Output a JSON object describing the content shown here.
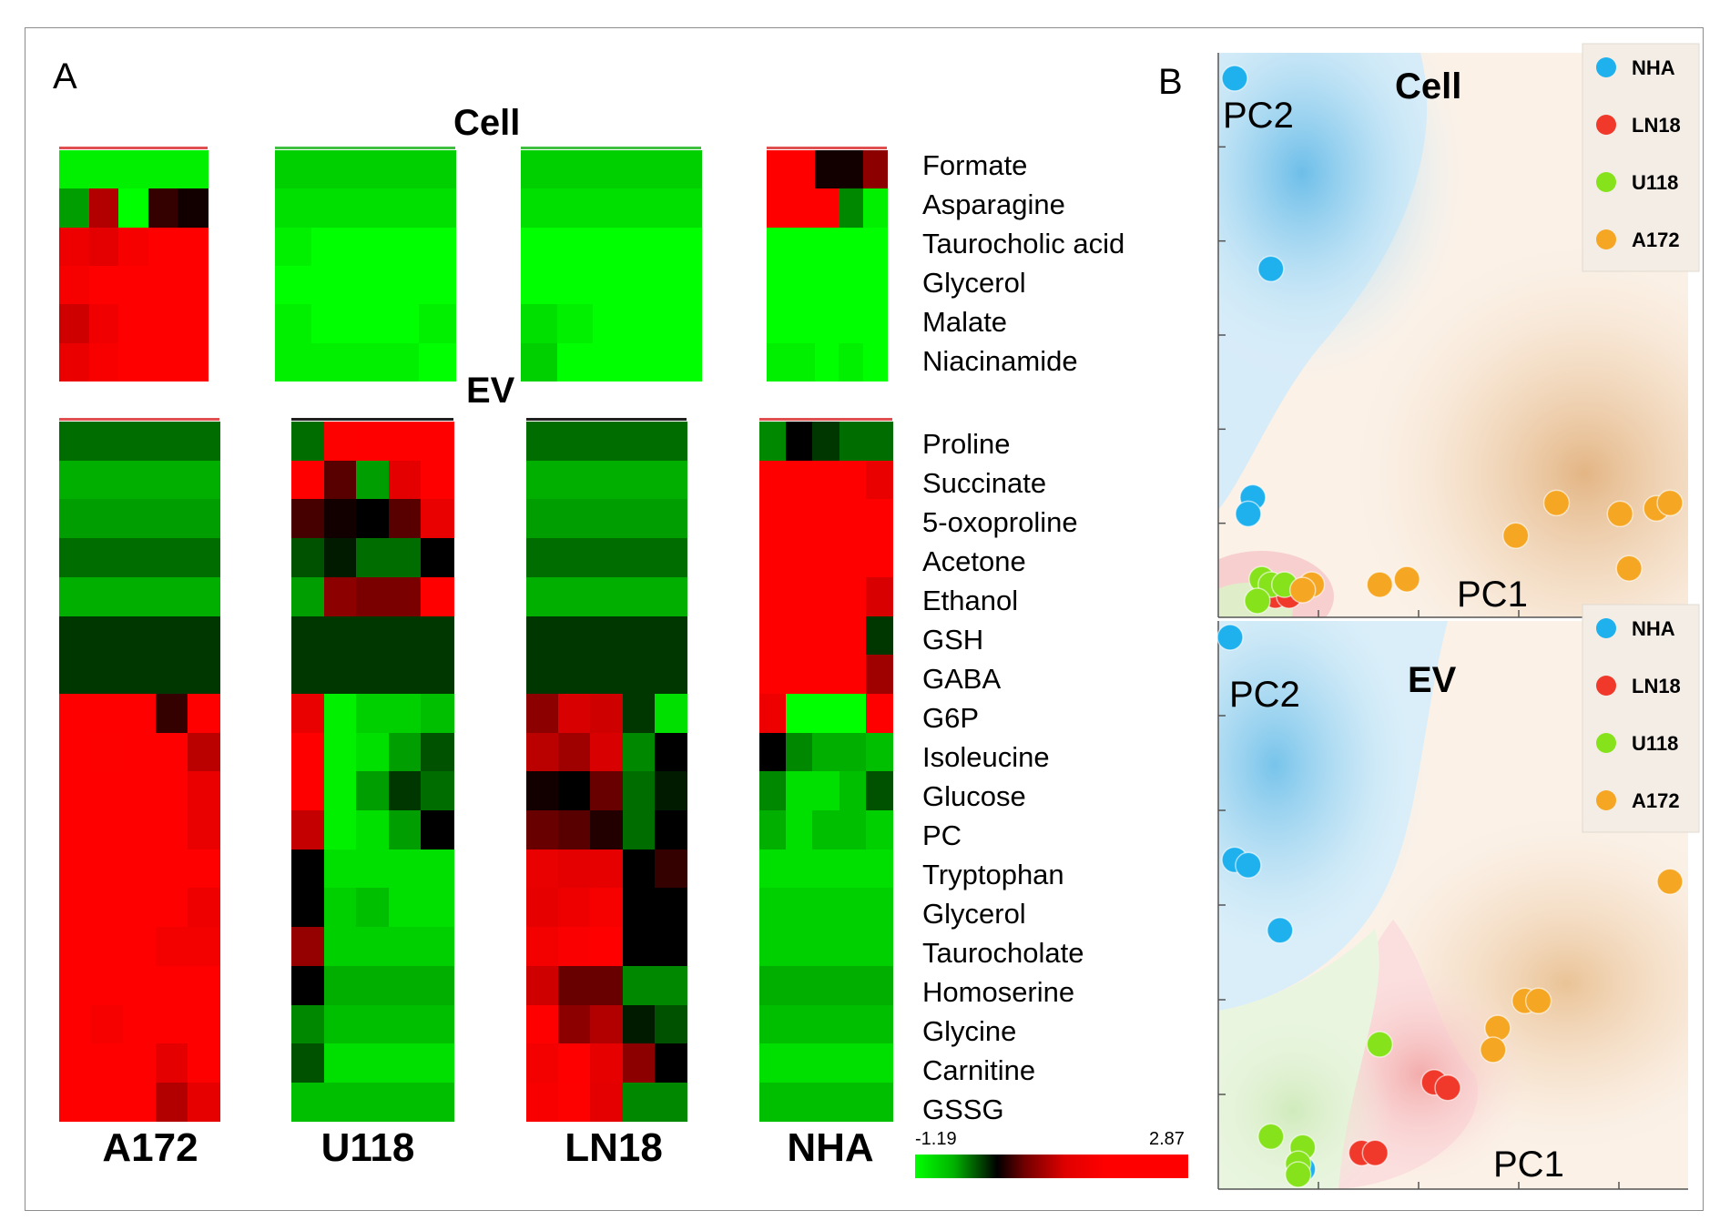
{
  "panel_labels": {
    "a": "A",
    "b": "B"
  },
  "heatmap": {
    "cell_title": "Cell",
    "ev_title": "EV",
    "groups": [
      "A172",
      "U118",
      "LN18",
      "NHA"
    ],
    "scale": {
      "min": "-1.19",
      "max": "2.87"
    },
    "cell_metabolites": [
      "Formate",
      "Asparagine",
      "Taurocholic acid",
      "Glycerol",
      "Malate",
      "Niacinamide"
    ],
    "ev_metabolites": [
      "Proline",
      "Succinate",
      "5-oxoproline",
      "Acetone",
      "Ethanol",
      "GSH",
      "GABA",
      "G6P",
      "Isoleucine",
      "Glucose",
      "PC",
      "Tryptophan",
      "Glycerol",
      "Taurocholate",
      "Homoserine",
      "Glycine",
      "Carnitine",
      "GSSG"
    ]
  },
  "pca": {
    "axis_x": "PC1",
    "axis_y": "PC2",
    "legend": [
      "NHA",
      "LN18",
      "U118",
      "A172"
    ],
    "colors": {
      "NHA": "#1fb0ee",
      "LN18": "#f0392b",
      "U118": "#86e21b",
      "A172": "#f5a623"
    },
    "cell_title": "Cell",
    "ev_title": "EV"
  },
  "chart_data": [
    {
      "type": "heatmap",
      "title": "Cell",
      "rows": [
        "Formate",
        "Asparagine",
        "Taurocholic acid",
        "Glycerol",
        "Malate",
        "Niacinamide"
      ],
      "groups": [
        "A172",
        "U118",
        "LN18",
        "NHA"
      ],
      "replicates": 5,
      "color_range": [
        -1.19,
        2.87
      ],
      "values": {
        "A172": [
          [
            -1.1,
            -1.1,
            -1.1,
            -1.1,
            -1.1
          ],
          [
            -0.6,
            1.2,
            -1.2,
            0.3,
            0.1
          ],
          [
            2.2,
            1.8,
            2.5,
            2.9,
            2.9
          ],
          [
            2.5,
            2.9,
            2.9,
            2.9,
            2.9
          ],
          [
            1.5,
            2.3,
            2.9,
            2.9,
            2.9
          ],
          [
            2.1,
            2.6,
            2.9,
            2.9,
            2.9
          ]
        ],
        "U118": [
          [
            -0.9,
            -0.9,
            -0.9,
            -0.9,
            -0.9
          ],
          [
            -1.0,
            -1.0,
            -1.0,
            -1.0,
            -1.0
          ],
          [
            -1.1,
            -1.2,
            -1.2,
            -1.2,
            -1.2
          ],
          [
            -1.2,
            -1.2,
            -1.2,
            -1.2,
            -1.2
          ],
          [
            -1.1,
            -1.2,
            -1.2,
            -1.2,
            -1.1
          ],
          [
            -1.1,
            -1.1,
            -1.1,
            -1.1,
            -1.2
          ]
        ],
        "LN18": [
          [
            -0.9,
            -0.9,
            -0.9,
            -0.9,
            -0.9
          ],
          [
            -1.0,
            -1.0,
            -1.0,
            -1.0,
            -1.0
          ],
          [
            -1.2,
            -1.2,
            -1.2,
            -1.2,
            -1.2
          ],
          [
            -1.2,
            -1.2,
            -1.2,
            -1.2,
            -1.2
          ],
          [
            -1.0,
            -1.1,
            -1.2,
            -1.2,
            -1.2
          ],
          [
            -0.9,
            -1.2,
            -1.2,
            -1.2,
            -1.2
          ]
        ],
        "NHA": [
          [
            2.9,
            2.9,
            0.1,
            0.1,
            0.8
          ],
          [
            2.9,
            2.9,
            2.9,
            -0.5,
            -1.1
          ],
          [
            -1.2,
            -1.2,
            -1.2,
            -1.2,
            -1.2
          ],
          [
            -1.2,
            -1.2,
            -1.2,
            -1.2,
            -1.2
          ],
          [
            -1.2,
            -1.2,
            -1.2,
            -1.2,
            -1.2
          ],
          [
            -1.1,
            -1.1,
            -1.2,
            -1.1,
            -1.2
          ]
        ]
      }
    },
    {
      "type": "heatmap",
      "title": "EV",
      "rows": [
        "Proline",
        "Succinate",
        "5-oxoproline",
        "Acetone",
        "Ethanol",
        "GSH",
        "GABA",
        "G6P",
        "Isoleucine",
        "Glucose",
        "PC",
        "Tryptophan",
        "Glycerol",
        "Taurocholate",
        "Homoserine",
        "Glycine",
        "Carnitine",
        "GSSG"
      ],
      "groups": [
        "A172",
        "U118",
        "LN18",
        "NHA"
      ],
      "replicates": 5,
      "color_range": [
        -1.19,
        2.87
      ],
      "values": {
        "A172": [
          [
            -0.4,
            -0.4,
            -0.4,
            -0.4,
            -0.4
          ],
          [
            -0.7,
            -0.7,
            -0.7,
            -0.7,
            -0.7
          ],
          [
            -0.6,
            -0.6,
            -0.6,
            -0.6,
            -0.6
          ],
          [
            -0.4,
            -0.4,
            -0.4,
            -0.4,
            -0.4
          ],
          [
            -0.7,
            -0.7,
            -0.7,
            -0.7,
            -0.7
          ],
          [
            -0.2,
            -0.2,
            -0.2,
            -0.2,
            -0.2
          ],
          [
            -0.2,
            -0.2,
            -0.2,
            -0.2,
            -0.2
          ],
          [
            2.9,
            2.9,
            2.9,
            0.3,
            2.9
          ],
          [
            2.9,
            2.8,
            2.9,
            2.9,
            1.3
          ],
          [
            2.9,
            2.9,
            2.9,
            2.9,
            2.1
          ],
          [
            2.9,
            2.9,
            2.9,
            2.9,
            2.0
          ],
          [
            2.9,
            2.9,
            2.9,
            2.9,
            2.9
          ],
          [
            2.9,
            2.9,
            2.9,
            2.9,
            2.2
          ],
          [
            2.9,
            2.9,
            2.9,
            2.4,
            2.4
          ],
          [
            2.9,
            2.9,
            2.9,
            2.9,
            2.9
          ],
          [
            2.9,
            2.5,
            2.9,
            2.9,
            2.9
          ],
          [
            2.9,
            2.9,
            2.9,
            1.8,
            2.9
          ],
          [
            2.9,
            2.9,
            2.9,
            1.2,
            1.9
          ]
        ],
        "U118": [
          [
            -0.4,
            2.8,
            2.9,
            2.9,
            2.9
          ],
          [
            2.9,
            0.5,
            -0.6,
            1.8,
            2.9
          ],
          [
            0.4,
            0.1,
            0.0,
            0.5,
            2.0
          ],
          [
            -0.3,
            -0.1,
            -0.4,
            -0.4,
            0.0
          ],
          [
            -0.6,
            0.8,
            0.7,
            0.7,
            2.9
          ],
          [
            -0.2,
            -0.2,
            -0.2,
            -0.2,
            -0.2
          ],
          [
            -0.2,
            -0.2,
            -0.2,
            -0.2,
            -0.2
          ],
          [
            2.0,
            -1.1,
            -0.9,
            -0.9,
            -0.8
          ],
          [
            2.9,
            -1.1,
            -1.0,
            -0.6,
            -0.3
          ],
          [
            2.9,
            -1.1,
            -0.6,
            -0.2,
            -0.4
          ],
          [
            1.4,
            -1.1,
            -1.0,
            -0.6,
            0.0
          ],
          [
            0.0,
            -1.0,
            -1.0,
            -1.0,
            -1.0
          ],
          [
            0.0,
            -0.9,
            -0.8,
            -1.0,
            -1.0
          ],
          [
            0.9,
            -0.9,
            -0.9,
            -0.9,
            -0.9
          ],
          [
            0.0,
            -0.7,
            -0.7,
            -0.7,
            -0.7
          ],
          [
            -0.5,
            -0.8,
            -0.8,
            -0.8,
            -0.8
          ],
          [
            -0.3,
            -1.0,
            -1.0,
            -1.0,
            -1.0
          ],
          [
            -0.8,
            -0.8,
            -0.8,
            -0.8,
            -0.8
          ]
        ],
        "LN18": [
          [
            -0.4,
            -0.4,
            -0.4,
            -0.4,
            -0.4
          ],
          [
            -0.7,
            -0.7,
            -0.7,
            -0.7,
            -0.7
          ],
          [
            -0.6,
            -0.6,
            -0.6,
            -0.6,
            -0.6
          ],
          [
            -0.4,
            -0.4,
            -0.4,
            -0.4,
            -0.4
          ],
          [
            -0.7,
            -0.7,
            -0.7,
            -0.7,
            -0.7
          ],
          [
            -0.2,
            -0.2,
            -0.2,
            -0.2,
            -0.2
          ],
          [
            -0.2,
            -0.2,
            -0.2,
            -0.2,
            -0.2
          ],
          [
            0.8,
            1.6,
            1.5,
            -0.2,
            -1.0
          ],
          [
            1.3,
            1.0,
            1.6,
            -0.5,
            0.0
          ],
          [
            0.1,
            0.0,
            0.6,
            -0.4,
            -0.1
          ],
          [
            0.6,
            0.5,
            0.2,
            -0.4,
            0.0
          ],
          [
            2.0,
            1.8,
            1.9,
            0.0,
            0.3
          ],
          [
            1.9,
            2.2,
            2.5,
            0.0,
            0.0
          ],
          [
            2.4,
            2.7,
            2.9,
            0.0,
            0.0
          ],
          [
            1.5,
            0.6,
            0.6,
            -0.5,
            -0.5
          ],
          [
            2.9,
            0.8,
            1.2,
            -0.1,
            -0.3
          ],
          [
            2.4,
            2.9,
            1.9,
            0.8,
            0.0
          ],
          [
            2.6,
            2.8,
            1.8,
            -0.5,
            -0.5
          ]
        ],
        "NHA": [
          [
            -0.5,
            0.0,
            -0.2,
            -0.4,
            -0.4
          ],
          [
            2.9,
            2.9,
            2.9,
            2.9,
            2.0
          ],
          [
            2.9,
            2.9,
            2.9,
            2.9,
            2.9
          ],
          [
            2.9,
            2.9,
            2.9,
            2.9,
            2.9
          ],
          [
            2.9,
            2.9,
            2.9,
            2.9,
            1.6
          ],
          [
            2.9,
            2.9,
            2.9,
            2.9,
            -0.2
          ],
          [
            2.9,
            2.9,
            2.9,
            2.9,
            1.0
          ],
          [
            2.2,
            -1.2,
            -1.2,
            -1.2,
            2.9
          ],
          [
            0.0,
            -0.5,
            -0.7,
            -0.7,
            -0.8
          ],
          [
            -0.5,
            -1.0,
            -1.0,
            -0.8,
            -0.3
          ],
          [
            -0.7,
            -1.0,
            -0.8,
            -0.8,
            -0.9
          ],
          [
            -1.0,
            -1.0,
            -1.0,
            -1.0,
            -1.0
          ],
          [
            -0.9,
            -0.9,
            -0.9,
            -0.9,
            -0.9
          ],
          [
            -0.9,
            -0.9,
            -0.9,
            -0.9,
            -0.9
          ],
          [
            -0.7,
            -0.7,
            -0.7,
            -0.7,
            -0.7
          ],
          [
            -0.8,
            -0.8,
            -0.8,
            -0.8,
            -0.8
          ],
          [
            -1.0,
            -1.0,
            -1.0,
            -1.0,
            -1.0
          ],
          [
            -0.8,
            -0.8,
            -0.8,
            -0.8,
            -0.8
          ]
        ]
      }
    },
    {
      "type": "scatter",
      "title": "Cell",
      "xlabel": "PC1",
      "ylabel": "PC2",
      "xlim": [
        0,
        10
      ],
      "ylim": [
        0,
        10
      ],
      "legend_position": "top-right",
      "series": [
        {
          "name": "NHA",
          "points": [
            [
              0.2,
              9.8
            ],
            [
              1.0,
              6.3
            ],
            [
              0.6,
              2.1
            ],
            [
              0.5,
              1.8
            ]
          ]
        },
        {
          "name": "LN18",
          "points": [
            [
              0.9,
              0.5
            ],
            [
              1.1,
              0.3
            ],
            [
              1.4,
              0.3
            ]
          ]
        },
        {
          "name": "U118",
          "points": [
            [
              0.8,
              0.6
            ],
            [
              1.0,
              0.5
            ],
            [
              1.3,
              0.5
            ],
            [
              0.7,
              0.2
            ]
          ]
        },
        {
          "name": "A172",
          "points": [
            [
              1.9,
              0.5
            ],
            [
              3.4,
              0.5
            ],
            [
              4.0,
              0.6
            ],
            [
              6.4,
              1.4
            ],
            [
              7.3,
              2.0
            ],
            [
              8.7,
              1.8
            ],
            [
              9.5,
              1.9
            ],
            [
              9.8,
              2.0
            ],
            [
              8.9,
              0.8
            ],
            [
              1.7,
              0.4
            ]
          ]
        }
      ]
    },
    {
      "type": "scatter",
      "title": "EV",
      "xlabel": "PC1",
      "ylabel": "PC2",
      "xlim": [
        0,
        10
      ],
      "ylim": [
        0,
        10
      ],
      "legend_position": "top-right",
      "series": [
        {
          "name": "NHA",
          "points": [
            [
              0.1,
              10.0
            ],
            [
              0.2,
              5.9
            ],
            [
              0.5,
              5.8
            ],
            [
              1.2,
              4.6
            ],
            [
              1.7,
              0.2
            ]
          ]
        },
        {
          "name": "LN18",
          "points": [
            [
              4.6,
              1.8
            ],
            [
              4.9,
              1.7
            ],
            [
              3.0,
              0.5
            ],
            [
              3.3,
              0.5
            ]
          ]
        },
        {
          "name": "U118",
          "points": [
            [
              3.4,
              2.5
            ],
            [
              1.0,
              0.8
            ],
            [
              1.7,
              0.6
            ],
            [
              1.6,
              0.3
            ],
            [
              1.6,
              0.1
            ]
          ]
        },
        {
          "name": "A172",
          "points": [
            [
              9.8,
              5.5
            ],
            [
              6.6,
              3.3
            ],
            [
              6.9,
              3.3
            ],
            [
              6.0,
              2.8
            ],
            [
              5.9,
              2.4
            ]
          ]
        }
      ]
    }
  ]
}
